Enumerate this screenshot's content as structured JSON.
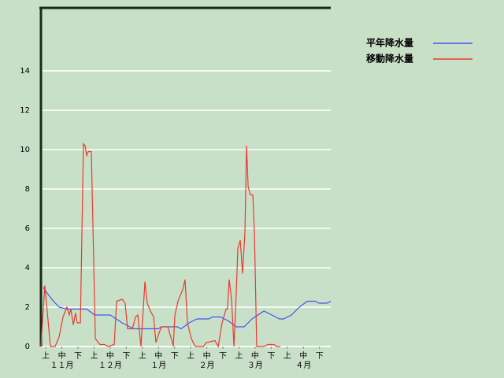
{
  "chart_data": {
    "type": "line",
    "xlim": [
      0,
      180
    ],
    "ylim": [
      0,
      17.2
    ],
    "yticks": [
      0,
      2,
      4,
      6,
      8,
      10,
      12,
      14
    ],
    "xticks": [
      {
        "value": 3,
        "label": "上"
      },
      {
        "value": 13,
        "label": "中"
      },
      {
        "value": 23,
        "label": "下"
      },
      {
        "value": 33,
        "label": "上"
      },
      {
        "value": 43,
        "label": "中"
      },
      {
        "value": 53,
        "label": "下"
      },
      {
        "value": 63,
        "label": "上"
      },
      {
        "value": 73,
        "label": "中"
      },
      {
        "value": 83,
        "label": "下"
      },
      {
        "value": 93,
        "label": "上"
      },
      {
        "value": 103,
        "label": "中"
      },
      {
        "value": 113,
        "label": "下"
      },
      {
        "value": 123,
        "label": "上"
      },
      {
        "value": 133,
        "label": "中"
      },
      {
        "value": 143,
        "label": "下"
      },
      {
        "value": 153,
        "label": "上"
      },
      {
        "value": 163,
        "label": "中"
      },
      {
        "value": 173,
        "label": "下"
      }
    ],
    "month_labels": [
      {
        "value": 13,
        "label": "１１月"
      },
      {
        "value": 43,
        "label": "１２月"
      },
      {
        "value": 73,
        "label": "１月"
      },
      {
        "value": 103,
        "label": "２月"
      },
      {
        "value": 133,
        "label": "３月"
      },
      {
        "value": 163,
        "label": "４月"
      }
    ],
    "grid": true,
    "legend": "right",
    "series": [
      {
        "name": "平年降水量",
        "color": "#4455ee",
        "x": [
          1.5,
          3.9,
          7.8,
          11.3,
          16.1,
          28.4,
          33.3,
          43.1,
          50.4,
          57.7,
          72.9,
          74.9,
          84.6,
          87.1,
          92,
          96.9,
          104.2,
          106.6,
          111.5,
          116.4,
          121.3,
          126.2,
          131.1,
          138.5,
          143.4,
          148.2,
          150.7,
          155.6,
          160.5,
          165.4,
          170.3,
          172.7,
          177.6,
          180
        ],
        "values": [
          3.0,
          2.7,
          2.3,
          2.0,
          1.9,
          1.9,
          1.6,
          1.6,
          1.2,
          0.9,
          0.9,
          1.0,
          1.0,
          0.9,
          1.2,
          1.4,
          1.4,
          1.5,
          1.5,
          1.3,
          1.0,
          1.0,
          1.4,
          1.8,
          1.6,
          1.4,
          1.4,
          1.6,
          2.0,
          2.3,
          2.3,
          2.2,
          2.2,
          2.3
        ]
      },
      {
        "name": "移動降水量",
        "color": "#e83a2e",
        "x": [
          0,
          2.4,
          5.9,
          8.8,
          11.3,
          13.7,
          16.1,
          17.6,
          18.6,
          20.1,
          21.5,
          22.5,
          24.5,
          26.4,
          27.4,
          28.4,
          29.4,
          31.3,
          33.8,
          36.7,
          39.6,
          41.6,
          45.5,
          47,
          50.4,
          52.3,
          53.8,
          56.8,
          58.7,
          60.2,
          62.1,
          63.1,
          64.6,
          66,
          68,
          70,
          71.4,
          73.4,
          74.9,
          78.8,
          80.2,
          81.7,
          82.2,
          83.2,
          85.1,
          88.1,
          89.5,
          91,
          93.4,
          95.9,
          100.8,
          102.7,
          108.1,
          110.1,
          112.5,
          115,
          115.9,
          116.9,
          118.4,
          119.9,
          121.3,
          122.3,
          123.8,
          125.2,
          126.7,
          127.7,
          128.7,
          130.1,
          131.6,
          132.6,
          134,
          138.5,
          140.9,
          144.8,
          146.3,
          148.7
        ],
        "values": [
          0,
          3.1,
          0,
          0,
          0.5,
          1.5,
          2.0,
          1.6,
          1.9,
          1.1,
          1.7,
          1.2,
          1.2,
          10.3,
          10.2,
          9.7,
          9.9,
          9.9,
          0.4,
          0.1,
          0.1,
          0,
          0.1,
          2.3,
          2.4,
          2.2,
          0.9,
          0.9,
          1.5,
          1.6,
          0,
          1.3,
          3.3,
          2.2,
          1.8,
          1.5,
          0.2,
          0.7,
          1.0,
          1.0,
          0.6,
          0.2,
          0,
          1.6,
          2.3,
          2.9,
          3.4,
          1.2,
          0.4,
          0,
          0,
          0.2,
          0.3,
          0,
          1.2,
          1.9,
          1.9,
          3.4,
          2.4,
          0,
          2.7,
          5.0,
          5.4,
          3.7,
          5.8,
          10.2,
          8.1,
          7.7,
          7.7,
          5.8,
          0,
          0,
          0.1,
          0.1,
          0,
          0
        ]
      }
    ]
  }
}
